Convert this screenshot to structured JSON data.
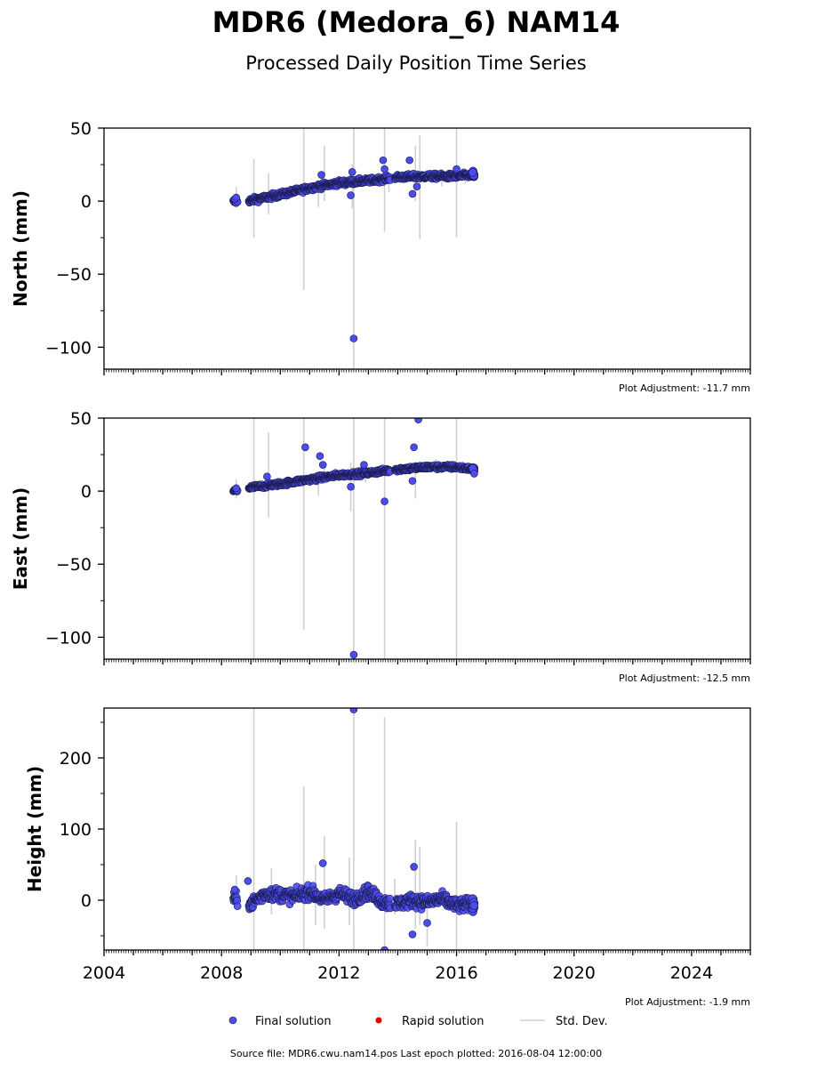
{
  "title": "MDR6 (Medora_6) NAM14",
  "subtitle": "Processed Daily Position Time Series",
  "legend": {
    "final": "Final solution",
    "rapid": "Rapid solution",
    "std": "Std. Dev.",
    "placement": "bottom-center"
  },
  "source_text": "Source file: MDR6.cwu.nam14.pos  Last epoch plotted: 2016-08-04 12:00:00",
  "colors": {
    "final": "#4b4bf0",
    "final_edge": "#1a1a4a",
    "rapid": "#e00000",
    "std": "#d0d0d0"
  },
  "chart_data": [
    {
      "type": "scatter",
      "panel": "north",
      "ylabel": "North (mm)",
      "adjustment": "Plot Adjustment: -11.7 mm",
      "xlim": [
        2004,
        2026
      ],
      "ylim": [
        -115,
        50
      ],
      "yticks": [
        -100,
        -50,
        0,
        50
      ],
      "xticks": [],
      "trend": [
        [
          2008.4,
          -0.5
        ],
        [
          2009.0,
          0.5
        ],
        [
          2010.0,
          4.5
        ],
        [
          2011.0,
          9
        ],
        [
          2012.0,
          12.5
        ],
        [
          2013.0,
          14
        ],
        [
          2014.0,
          16.5
        ],
        [
          2015.0,
          17
        ],
        [
          2016.0,
          17
        ],
        [
          2016.6,
          18
        ]
      ],
      "noise": 1.8,
      "outliers": [
        [
          2008.45,
          1.5
        ],
        [
          2008.5,
          2.5
        ],
        [
          2011.4,
          18
        ],
        [
          2012.4,
          4
        ],
        [
          2012.45,
          20
        ],
        [
          2012.5,
          -94
        ],
        [
          2013.5,
          28
        ],
        [
          2013.55,
          22
        ],
        [
          2014.4,
          28
        ],
        [
          2014.5,
          5
        ],
        [
          2014.65,
          10
        ],
        [
          2016.0,
          22
        ]
      ],
      "errorbars": [
        [
          2008.5,
          -2,
          10
        ],
        [
          2009.1,
          -25,
          29
        ],
        [
          2009.6,
          -9,
          19
        ],
        [
          2010.8,
          -61,
          50
        ],
        [
          2011.3,
          -4,
          15
        ],
        [
          2011.5,
          0,
          38
        ],
        [
          2012.5,
          -115,
          50
        ],
        [
          2012.45,
          -5,
          25
        ],
        [
          2013.55,
          -21,
          50
        ],
        [
          2013.7,
          6,
          20
        ],
        [
          2014.6,
          0,
          38
        ],
        [
          2014.75,
          -26,
          45
        ],
        [
          2016.0,
          -25,
          50
        ],
        [
          2015.5,
          10,
          22
        ],
        [
          2010.2,
          0,
          10
        ],
        [
          2016.3,
          12,
          22
        ]
      ]
    },
    {
      "type": "scatter",
      "panel": "east",
      "ylabel": "East (mm)",
      "adjustment": "Plot Adjustment: -12.5 mm",
      "xlim": [
        2004,
        2026
      ],
      "ylim": [
        -115,
        50
      ],
      "yticks": [
        -100,
        -50,
        0,
        50
      ],
      "xticks": [],
      "trend": [
        [
          2008.4,
          0
        ],
        [
          2009.0,
          2.5
        ],
        [
          2010.0,
          5
        ],
        [
          2011.0,
          8
        ],
        [
          2012.0,
          11
        ],
        [
          2013.0,
          12.5
        ],
        [
          2014.0,
          15
        ],
        [
          2015.0,
          16.5
        ],
        [
          2016.0,
          16.5
        ],
        [
          2016.6,
          15
        ]
      ],
      "noise": 1.6,
      "outliers": [
        [
          2008.5,
          2
        ],
        [
          2009.55,
          10
        ],
        [
          2010.85,
          30
        ],
        [
          2011.35,
          24
        ],
        [
          2011.45,
          18
        ],
        [
          2012.4,
          3
        ],
        [
          2012.5,
          -112
        ],
        [
          2012.85,
          18
        ],
        [
          2013.55,
          -7
        ],
        [
          2014.5,
          7
        ],
        [
          2014.55,
          30
        ],
        [
          2014.7,
          49
        ],
        [
          2016.6,
          12
        ]
      ],
      "errorbars": [
        [
          2008.5,
          -5,
          8
        ],
        [
          2009.1,
          -115,
          50
        ],
        [
          2009.6,
          -18,
          40
        ],
        [
          2010.8,
          -95,
          50
        ],
        [
          2011.3,
          -3,
          12
        ],
        [
          2011.5,
          5,
          20
        ],
        [
          2012.4,
          -14,
          20
        ],
        [
          2012.5,
          -115,
          50
        ],
        [
          2013.55,
          -115,
          50
        ],
        [
          2014.6,
          -5,
          20
        ],
        [
          2016.0,
          -115,
          50
        ],
        [
          2015.3,
          12,
          22
        ],
        [
          2012.9,
          6,
          18
        ]
      ]
    },
    {
      "type": "scatter",
      "panel": "height",
      "ylabel": "Height (mm)",
      "adjustment": "Plot Adjustment: -1.9 mm",
      "xlim": [
        2004,
        2026
      ],
      "ylim": [
        -70,
        270
      ],
      "yticks": [
        0,
        100,
        200
      ],
      "xticks": [
        2004,
        2008,
        2012,
        2016,
        2020,
        2024
      ],
      "trend": [
        [
          2008.4,
          2
        ],
        [
          2009.0,
          -5
        ],
        [
          2009.5,
          10
        ],
        [
          2010.0,
          8
        ],
        [
          2010.5,
          5
        ],
        [
          2011.0,
          12
        ],
        [
          2011.5,
          0
        ],
        [
          2012.0,
          10
        ],
        [
          2012.5,
          2
        ],
        [
          2013.0,
          12
        ],
        [
          2013.5,
          -3
        ],
        [
          2014.0,
          -5
        ],
        [
          2014.5,
          0
        ],
        [
          2015.0,
          -3
        ],
        [
          2015.5,
          2
        ],
        [
          2016.0,
          -8
        ],
        [
          2016.6,
          -5
        ]
      ],
      "noise": 9,
      "outliers": [
        [
          2008.45,
          15
        ],
        [
          2008.9,
          27
        ],
        [
          2011.45,
          52
        ],
        [
          2012.5,
          268
        ],
        [
          2013.55,
          -70
        ],
        [
          2014.5,
          -48
        ],
        [
          2014.55,
          47
        ],
        [
          2015.0,
          -32
        ]
      ],
      "errorbars": [
        [
          2008.5,
          -10,
          35
        ],
        [
          2009.1,
          -70,
          270
        ],
        [
          2009.7,
          -20,
          45
        ],
        [
          2010.8,
          -70,
          160
        ],
        [
          2011.2,
          -35,
          50
        ],
        [
          2011.5,
          -40,
          90
        ],
        [
          2012.35,
          -35,
          60
        ],
        [
          2012.5,
          -70,
          270
        ],
        [
          2013.55,
          -70,
          257
        ],
        [
          2013.9,
          -20,
          30
        ],
        [
          2014.6,
          -40,
          85
        ],
        [
          2014.75,
          -35,
          75
        ],
        [
          2015.0,
          -65,
          0
        ],
        [
          2016.0,
          -70,
          110
        ]
      ]
    }
  ]
}
